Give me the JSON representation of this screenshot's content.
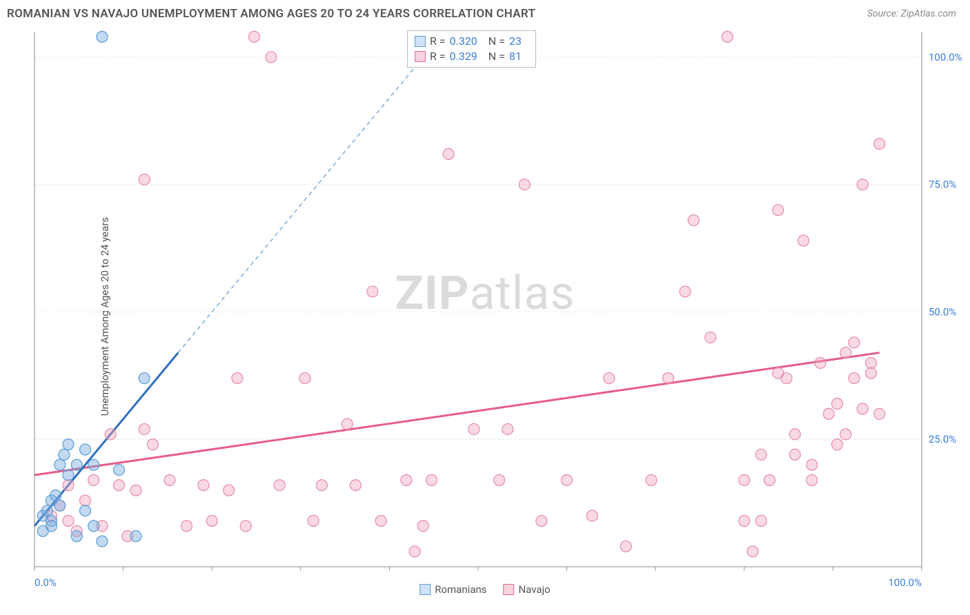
{
  "header": {
    "title": "ROMANIAN VS NAVAJO UNEMPLOYMENT AMONG AGES 20 TO 24 YEARS CORRELATION CHART",
    "source": "Source: ZipAtlas.com"
  },
  "axes": {
    "y_label": "Unemployment Among Ages 20 to 24 years",
    "xlim": [
      0,
      105
    ],
    "ylim": [
      0,
      105
    ],
    "ytick_values": [
      25,
      50,
      75,
      100
    ],
    "ytick_labels": [
      "25.0%",
      "50.0%",
      "75.0%",
      "100.0%"
    ],
    "xtick_left": "0.0%",
    "xtick_right": "100.0%",
    "grid_color": "#e6e6e6",
    "tick_color": "#999",
    "axis_color": "#888",
    "background_color": "#ffffff"
  },
  "legend_stats": {
    "rows": [
      {
        "r": "0.320",
        "n": "23",
        "swatch_fill": "#cfe3f7",
        "swatch_border": "#5a9bd5"
      },
      {
        "r": "0.329",
        "n": "81",
        "swatch_fill": "#f9d3dd",
        "swatch_border": "#e06a8c"
      }
    ],
    "r_label": "R =",
    "n_label": "N ="
  },
  "bottom_legend": {
    "items": [
      {
        "label": "Romanians",
        "swatch_fill": "#cfe3f7",
        "swatch_border": "#5a9bd5"
      },
      {
        "label": "Navajo",
        "swatch_fill": "#f9d3dd",
        "swatch_border": "#e06a8c"
      }
    ]
  },
  "series": {
    "romanians": {
      "color_fill": "rgba(120,170,225,0.45)",
      "color_stroke": "#5a9bd5",
      "trend_color": "#2e6fbf",
      "trend_dash_color": "#7aa9dd",
      "trend_solid": {
        "x1": 0,
        "y1": 8,
        "x2": 17,
        "y2": 42
      },
      "trend_dashed": {
        "x1": 17,
        "y1": 42,
        "x2": 48,
        "y2": 104
      },
      "points": [
        {
          "x": 1,
          "y": 10
        },
        {
          "x": 1.5,
          "y": 11
        },
        {
          "x": 2,
          "y": 9
        },
        {
          "x": 2,
          "y": 13
        },
        {
          "x": 2.5,
          "y": 14
        },
        {
          "x": 3,
          "y": 12
        },
        {
          "x": 3,
          "y": 20
        },
        {
          "x": 3.5,
          "y": 22
        },
        {
          "x": 4,
          "y": 18
        },
        {
          "x": 4,
          "y": 24
        },
        {
          "x": 5,
          "y": 20
        },
        {
          "x": 5,
          "y": 6
        },
        {
          "x": 6,
          "y": 11
        },
        {
          "x": 6,
          "y": 23
        },
        {
          "x": 7,
          "y": 8
        },
        {
          "x": 7,
          "y": 20
        },
        {
          "x": 8,
          "y": 5
        },
        {
          "x": 8,
          "y": 104
        },
        {
          "x": 10,
          "y": 19
        },
        {
          "x": 12,
          "y": 6
        },
        {
          "x": 13,
          "y": 37
        },
        {
          "x": 1,
          "y": 7
        },
        {
          "x": 2,
          "y": 8
        }
      ]
    },
    "navajo": {
      "color_fill": "rgba(240,160,185,0.40)",
      "color_stroke": "#e58ba7",
      "trend_color": "#e85d86",
      "trend_solid": {
        "x1": 0,
        "y1": 18,
        "x2": 100,
        "y2": 42
      },
      "points": [
        {
          "x": 2,
          "y": 10
        },
        {
          "x": 3,
          "y": 12
        },
        {
          "x": 4,
          "y": 9
        },
        {
          "x": 4,
          "y": 16
        },
        {
          "x": 5,
          "y": 7
        },
        {
          "x": 6,
          "y": 13
        },
        {
          "x": 7,
          "y": 17
        },
        {
          "x": 8,
          "y": 8
        },
        {
          "x": 9,
          "y": 26
        },
        {
          "x": 10,
          "y": 16
        },
        {
          "x": 11,
          "y": 6
        },
        {
          "x": 12,
          "y": 15
        },
        {
          "x": 13,
          "y": 27
        },
        {
          "x": 13,
          "y": 76
        },
        {
          "x": 14,
          "y": 24
        },
        {
          "x": 16,
          "y": 17
        },
        {
          "x": 18,
          "y": 8
        },
        {
          "x": 20,
          "y": 16
        },
        {
          "x": 21,
          "y": 9
        },
        {
          "x": 23,
          "y": 15
        },
        {
          "x": 24,
          "y": 37
        },
        {
          "x": 25,
          "y": 8
        },
        {
          "x": 26,
          "y": 104
        },
        {
          "x": 28,
          "y": 100
        },
        {
          "x": 29,
          "y": 16
        },
        {
          "x": 32,
          "y": 37
        },
        {
          "x": 33,
          "y": 9
        },
        {
          "x": 34,
          "y": 16
        },
        {
          "x": 37,
          "y": 28
        },
        {
          "x": 38,
          "y": 16
        },
        {
          "x": 40,
          "y": 54
        },
        {
          "x": 41,
          "y": 9
        },
        {
          "x": 44,
          "y": 17
        },
        {
          "x": 45,
          "y": 3
        },
        {
          "x": 46,
          "y": 8
        },
        {
          "x": 47,
          "y": 17
        },
        {
          "x": 49,
          "y": 81
        },
        {
          "x": 50,
          "y": 104
        },
        {
          "x": 52,
          "y": 27
        },
        {
          "x": 55,
          "y": 17
        },
        {
          "x": 56,
          "y": 27
        },
        {
          "x": 58,
          "y": 75
        },
        {
          "x": 60,
          "y": 9
        },
        {
          "x": 63,
          "y": 17
        },
        {
          "x": 66,
          "y": 10
        },
        {
          "x": 68,
          "y": 37
        },
        {
          "x": 70,
          "y": 4
        },
        {
          "x": 73,
          "y": 17
        },
        {
          "x": 75,
          "y": 37
        },
        {
          "x": 77,
          "y": 54
        },
        {
          "x": 78,
          "y": 68
        },
        {
          "x": 80,
          "y": 45
        },
        {
          "x": 82,
          "y": 104
        },
        {
          "x": 84,
          "y": 9
        },
        {
          "x": 85,
          "y": 3
        },
        {
          "x": 86,
          "y": 22
        },
        {
          "x": 87,
          "y": 17
        },
        {
          "x": 88,
          "y": 70
        },
        {
          "x": 89,
          "y": 37
        },
        {
          "x": 90,
          "y": 26
        },
        {
          "x": 91,
          "y": 64
        },
        {
          "x": 92,
          "y": 17
        },
        {
          "x": 93,
          "y": 40
        },
        {
          "x": 94,
          "y": 30
        },
        {
          "x": 95,
          "y": 32
        },
        {
          "x": 95,
          "y": 24
        },
        {
          "x": 96,
          "y": 42
        },
        {
          "x": 96,
          "y": 26
        },
        {
          "x": 97,
          "y": 37
        },
        {
          "x": 97,
          "y": 44
        },
        {
          "x": 98,
          "y": 31
        },
        {
          "x": 98,
          "y": 75
        },
        {
          "x": 99,
          "y": 40
        },
        {
          "x": 99,
          "y": 38
        },
        {
          "x": 100,
          "y": 83
        },
        {
          "x": 100,
          "y": 30
        },
        {
          "x": 88,
          "y": 38
        },
        {
          "x": 90,
          "y": 22
        },
        {
          "x": 92,
          "y": 20
        },
        {
          "x": 84,
          "y": 17
        },
        {
          "x": 86,
          "y": 9
        }
      ]
    }
  },
  "watermark": {
    "part1": "ZIP",
    "part2": "atlas"
  },
  "marker_radius": 8,
  "trend_line_width": 3
}
